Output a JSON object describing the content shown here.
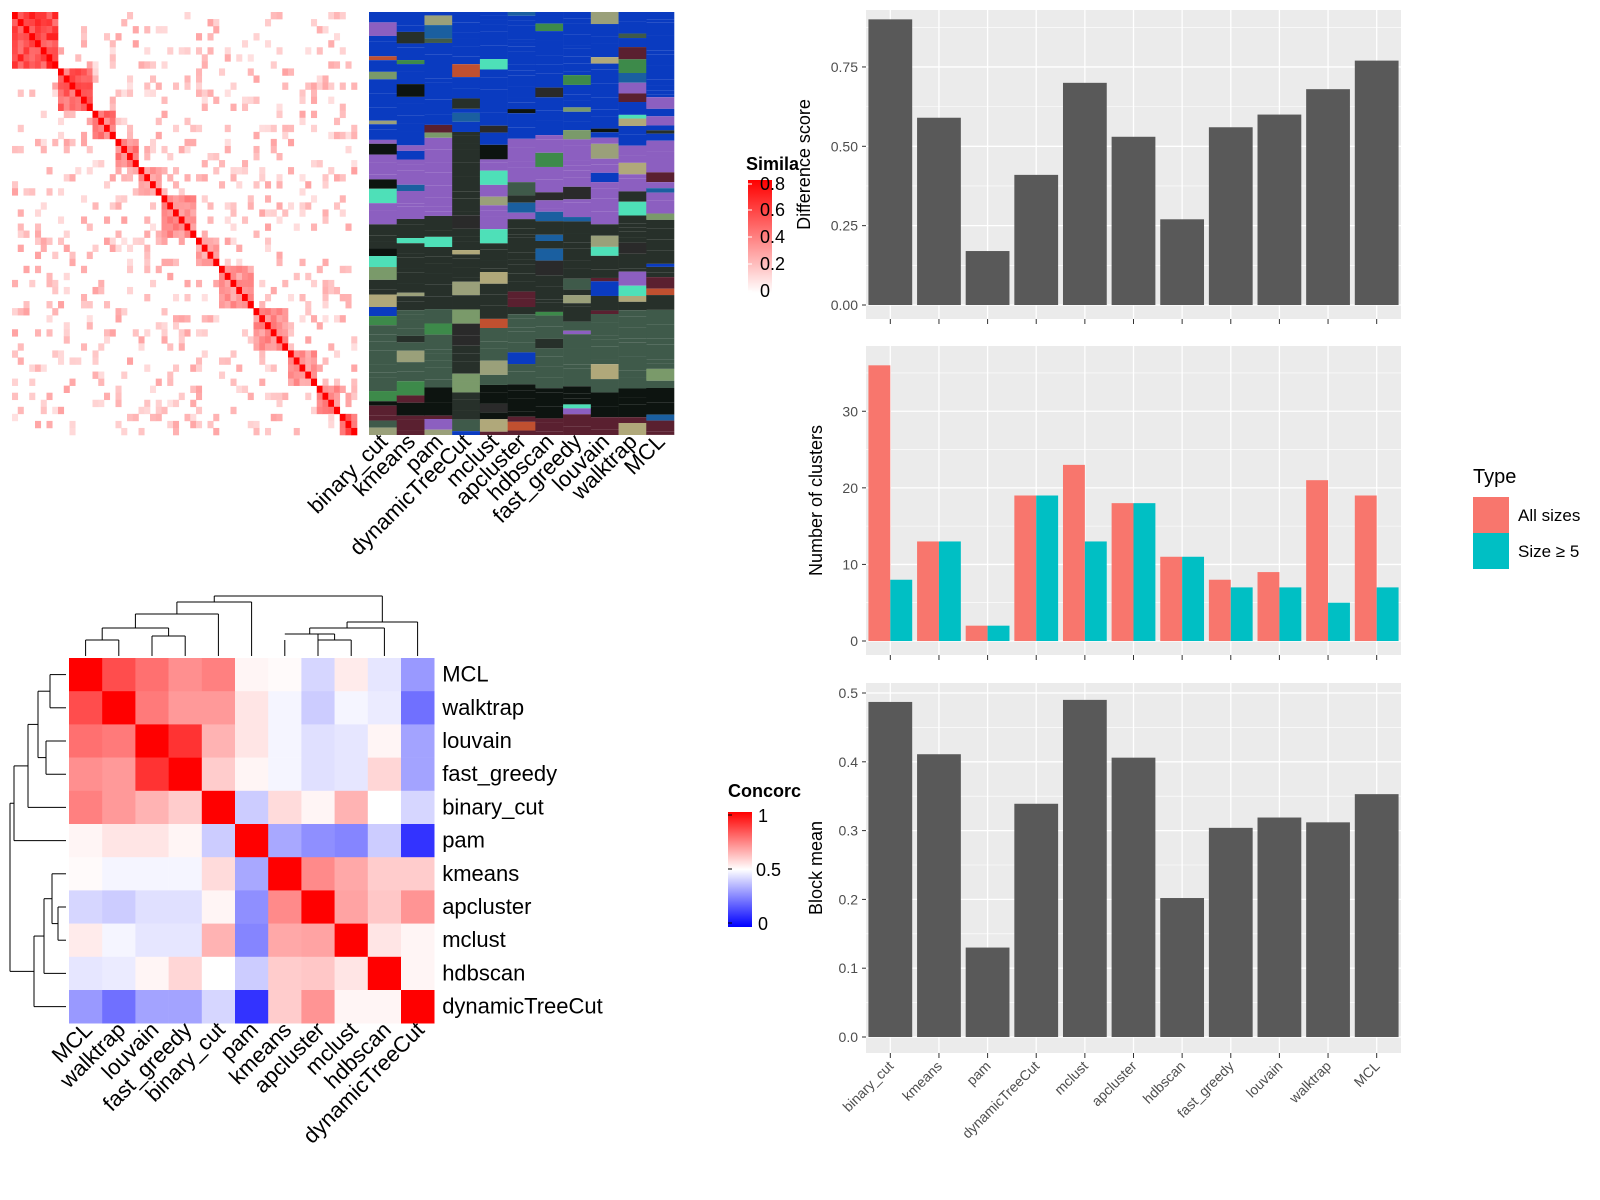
{
  "colors": {
    "bar_dark": "#595959",
    "panel_bg": "#ebebeb",
    "grid": "#ffffff",
    "all_sizes": "#f8766d",
    "size5": "#00bfc4",
    "heat_high": "#ff0000",
    "heat_mid": "#ffffff",
    "heat_low": "#0000ff"
  },
  "chart_data": [
    {
      "id": "similarity-heatmap",
      "type": "heatmap",
      "legend": {
        "title": "Similarity",
        "title_shown": "Simila",
        "ticks": [
          "0.8",
          "0.6",
          "0.4",
          "0.2",
          "0"
        ]
      }
    },
    {
      "id": "cluster-membership-heatmap",
      "type": "heatmap",
      "columns": [
        "binary_cut",
        "kmeans",
        "pam",
        "dynamicTreeCut",
        "mclust",
        "apcluster",
        "hdbscan",
        "fast_greedy",
        "louvain",
        "walktrap",
        "MCL"
      ]
    },
    {
      "id": "concordance-heatmap",
      "type": "heatmap",
      "legend": {
        "title": "Concordance",
        "title_shown": "Concorc",
        "ticks": [
          "1",
          "0.5",
          "0"
        ]
      },
      "rows": [
        "MCL",
        "walktrap",
        "louvain",
        "fast_greedy",
        "binary_cut",
        "pam",
        "kmeans",
        "apcluster",
        "mclust",
        "hdbscan",
        "dynamicTreeCut"
      ],
      "columns": [
        "MCL",
        "walktrap",
        "louvain",
        "fast_greedy",
        "binary_cut",
        "pam",
        "kmeans",
        "apcluster",
        "mclust",
        "hdbscan",
        "dynamicTreeCut"
      ],
      "values": [
        [
          1.0,
          0.85,
          0.78,
          0.72,
          0.75,
          0.52,
          0.51,
          0.42,
          0.54,
          0.45,
          0.3
        ],
        [
          0.85,
          1.0,
          0.76,
          0.7,
          0.7,
          0.55,
          0.48,
          0.4,
          0.48,
          0.46,
          0.22
        ],
        [
          0.78,
          0.76,
          1.0,
          0.9,
          0.65,
          0.55,
          0.48,
          0.44,
          0.45,
          0.52,
          0.32
        ],
        [
          0.72,
          0.7,
          0.9,
          1.0,
          0.6,
          0.52,
          0.48,
          0.44,
          0.45,
          0.58,
          0.32
        ],
        [
          0.75,
          0.7,
          0.65,
          0.6,
          1.0,
          0.4,
          0.57,
          0.52,
          0.65,
          0.5,
          0.42
        ],
        [
          0.52,
          0.55,
          0.55,
          0.52,
          0.4,
          1.0,
          0.33,
          0.28,
          0.26,
          0.4,
          0.1
        ],
        [
          0.51,
          0.48,
          0.48,
          0.48,
          0.57,
          0.33,
          1.0,
          0.73,
          0.67,
          0.6,
          0.6
        ],
        [
          0.42,
          0.4,
          0.44,
          0.44,
          0.52,
          0.28,
          0.73,
          1.0,
          0.68,
          0.61,
          0.71
        ],
        [
          0.54,
          0.48,
          0.45,
          0.45,
          0.65,
          0.26,
          0.67,
          0.68,
          1.0,
          0.55,
          0.52
        ],
        [
          0.45,
          0.46,
          0.52,
          0.58,
          0.5,
          0.4,
          0.6,
          0.61,
          0.55,
          1.0,
          0.52
        ],
        [
          0.3,
          0.22,
          0.32,
          0.32,
          0.42,
          0.1,
          0.6,
          0.71,
          0.52,
          0.52,
          1.0
        ]
      ]
    },
    {
      "id": "difference-score",
      "type": "bar",
      "categories": [
        "binary_cut",
        "kmeans",
        "pam",
        "dynamicTreeCut",
        "mclust",
        "apcluster",
        "hdbscan",
        "fast_greedy",
        "louvain",
        "walktrap",
        "MCL"
      ],
      "values": [
        0.9,
        0.59,
        0.17,
        0.41,
        0.7,
        0.53,
        0.27,
        0.56,
        0.6,
        0.68,
        0.77
      ],
      "ylabel": "Difference score",
      "ylim": [
        0,
        0.92
      ],
      "yticks": [
        "0.00",
        "0.25",
        "0.50",
        "0.75"
      ]
    },
    {
      "id": "number-of-clusters",
      "type": "bar",
      "categories": [
        "binary_cut",
        "kmeans",
        "pam",
        "dynamicTreeCut",
        "mclust",
        "apcluster",
        "hdbscan",
        "fast_greedy",
        "louvain",
        "walktrap",
        "MCL"
      ],
      "series": [
        {
          "name": "All sizes",
          "values": [
            36,
            13,
            2,
            19,
            23,
            18,
            11,
            8,
            9,
            21,
            19
          ]
        },
        {
          "name": "Size ≥ 5",
          "values": [
            8,
            13,
            2,
            19,
            13,
            18,
            11,
            7,
            7,
            5,
            7
          ]
        }
      ],
      "ylabel": "Number of clusters",
      "ylim": [
        0,
        38
      ],
      "yticks": [
        "0",
        "10",
        "20",
        "30"
      ],
      "legend": {
        "title": "Type",
        "position": "right"
      }
    },
    {
      "id": "block-mean",
      "type": "bar",
      "categories": [
        "binary_cut",
        "kmeans",
        "pam",
        "dynamicTreeCut",
        "mclust",
        "apcluster",
        "hdbscan",
        "fast_greedy",
        "louvain",
        "walktrap",
        "MCL"
      ],
      "values": [
        0.487,
        0.411,
        0.13,
        0.339,
        0.49,
        0.406,
        0.202,
        0.304,
        0.319,
        0.312,
        0.353
      ],
      "ylabel": "Block mean",
      "ylim": [
        0,
        0.5
      ],
      "yticks": [
        "0.0",
        "0.1",
        "0.2",
        "0.3",
        "0.4",
        "0.5"
      ]
    }
  ]
}
